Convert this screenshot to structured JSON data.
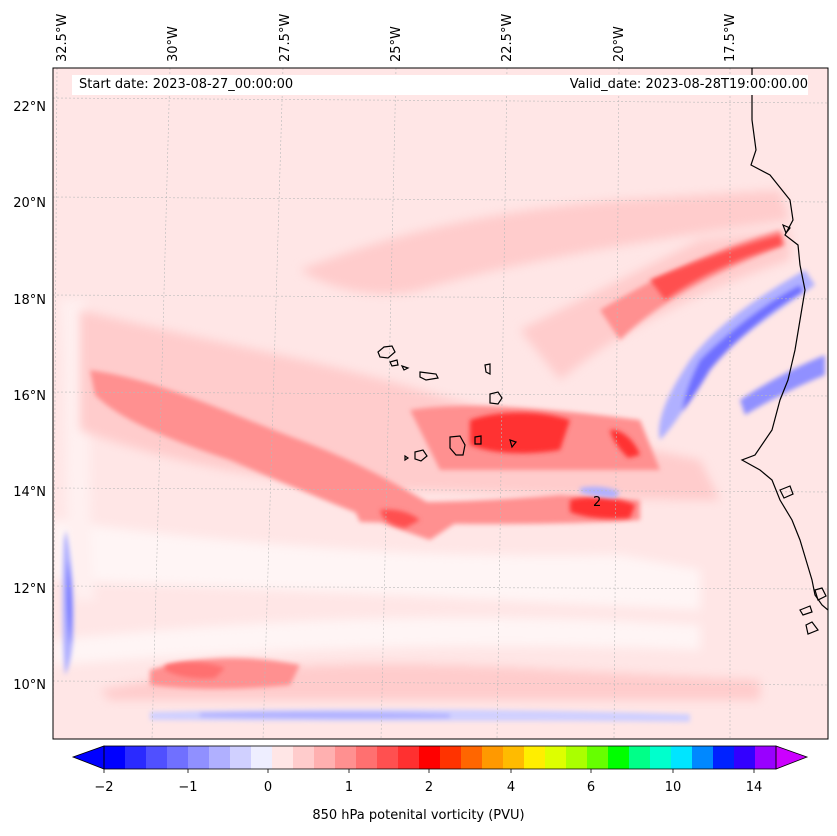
{
  "map": {
    "start_date_text": "Start date: 2023-08-27_00:00:00",
    "valid_date_text": "Valid_date: 2023-08-28T19:00:00.00",
    "lon_labels": [
      "32.5°W",
      "30°W",
      "27.5°W",
      "25°W",
      "22.5°W",
      "20°W",
      "17.5°W"
    ],
    "lat_labels": [
      "22°N",
      "20°N",
      "18°N",
      "16°N",
      "14°N",
      "12°N",
      "10°N"
    ],
    "contour_label": "2",
    "background_color": "#ffe6e6"
  },
  "colorbar": {
    "label": "850 hPa potenital vorticity (PVU)",
    "tick_labels": [
      "−2",
      "−1",
      "0",
      "1",
      "2",
      "4",
      "6",
      "10",
      "14"
    ],
    "colors": [
      "#0000ff",
      "#2a2aff",
      "#5050ff",
      "#7070ff",
      "#9090ff",
      "#b0b0ff",
      "#d0d0ff",
      "#eeeeff",
      "#ffe6e6",
      "#ffcccc",
      "#ffb0b0",
      "#ff9090",
      "#ff7070",
      "#ff5050",
      "#ff3030",
      "#ff0000",
      "#ff3300",
      "#ff6600",
      "#ff9900",
      "#ffbb00",
      "#ffee00",
      "#ddff00",
      "#aaff00",
      "#66ff00",
      "#00ff00",
      "#00ff88",
      "#00ffcc",
      "#00e5ff",
      "#0088ff",
      "#0022ff",
      "#3300ff",
      "#9900ff"
    ],
    "under_color": "#0000ff",
    "over_color": "#cc00ff"
  }
}
